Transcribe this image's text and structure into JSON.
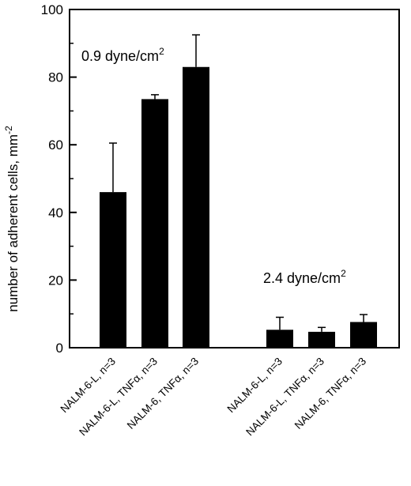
{
  "chart_data": {
    "type": "bar",
    "ylabel": "number of adherent cells, mm",
    "ylabel_sup": "-2",
    "ylim": [
      0,
      100
    ],
    "yticks": [
      "0",
      "20",
      "40",
      "60",
      "80",
      "100"
    ],
    "categories": [
      "NALM-6-L, n=3",
      "NALM-6-L, TNFα, n=3",
      "NALM-6, TNFα, n=3",
      "NALM-6-L, n=3",
      "NALM-6-L, TNFα, n=3",
      "NALM-6, TNFα, n=3"
    ],
    "values": [
      46,
      73.5,
      83,
      5.3,
      4.7,
      7.6
    ],
    "error_plus": [
      14.5,
      1.3,
      9.5,
      3.7,
      1.3,
      2.2
    ],
    "annotations": [
      {
        "text": "0.9 dyne/cm",
        "sup": "2"
      },
      {
        "text": "2.4 dyne/cm",
        "sup": "2"
      }
    ],
    "bar_color": "#000000",
    "grid": false
  }
}
